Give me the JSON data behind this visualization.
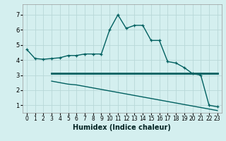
{
  "xlabel": "Humidex (Indice chaleur)",
  "bg_color": "#d4efef",
  "grid_color": "#b8d8d8",
  "line_color": "#006060",
  "line1_x": [
    0,
    1,
    2,
    3,
    4,
    5,
    6,
    7,
    8,
    9,
    10,
    11,
    12,
    13,
    14,
    15,
    16,
    17,
    18,
    19,
    20,
    21,
    22,
    23
  ],
  "line1_y": [
    4.7,
    4.1,
    4.05,
    4.1,
    4.15,
    4.3,
    4.3,
    4.4,
    4.4,
    4.4,
    6.0,
    7.0,
    6.1,
    6.3,
    6.3,
    5.3,
    5.3,
    3.9,
    3.8,
    3.5,
    3.1,
    3.0,
    1.0,
    0.9
  ],
  "line2_x": [
    3,
    4,
    5,
    6,
    7,
    8,
    9,
    10,
    11,
    12,
    13,
    14,
    15,
    16,
    17,
    18,
    19,
    20,
    21,
    22,
    23
  ],
  "line2_y": [
    3.1,
    3.1,
    3.1,
    3.1,
    3.1,
    3.1,
    3.1,
    3.1,
    3.1,
    3.1,
    3.1,
    3.1,
    3.1,
    3.1,
    3.1,
    3.1,
    3.1,
    3.1,
    3.1,
    3.1,
    3.1
  ],
  "line3_x": [
    3,
    4,
    5,
    6,
    7,
    8,
    9,
    10,
    11,
    12,
    13,
    14,
    15,
    16,
    17,
    18,
    19,
    20,
    21,
    22,
    23
  ],
  "line3_y": [
    2.6,
    2.5,
    2.4,
    2.35,
    2.25,
    2.15,
    2.05,
    1.95,
    1.85,
    1.75,
    1.65,
    1.55,
    1.45,
    1.35,
    1.25,
    1.15,
    1.05,
    0.95,
    0.85,
    0.75,
    0.65
  ],
  "xlim": [
    -0.5,
    23.5
  ],
  "ylim": [
    0.5,
    7.7
  ],
  "yticks": [
    1,
    2,
    3,
    4,
    5,
    6,
    7
  ],
  "xticks": [
    0,
    1,
    2,
    3,
    4,
    5,
    6,
    7,
    8,
    9,
    10,
    11,
    12,
    13,
    14,
    15,
    16,
    17,
    18,
    19,
    20,
    21,
    22,
    23
  ],
  "tick_fontsize": 5.5,
  "xlabel_fontsize": 7,
  "linewidth": 1.0,
  "markersize": 3.5
}
